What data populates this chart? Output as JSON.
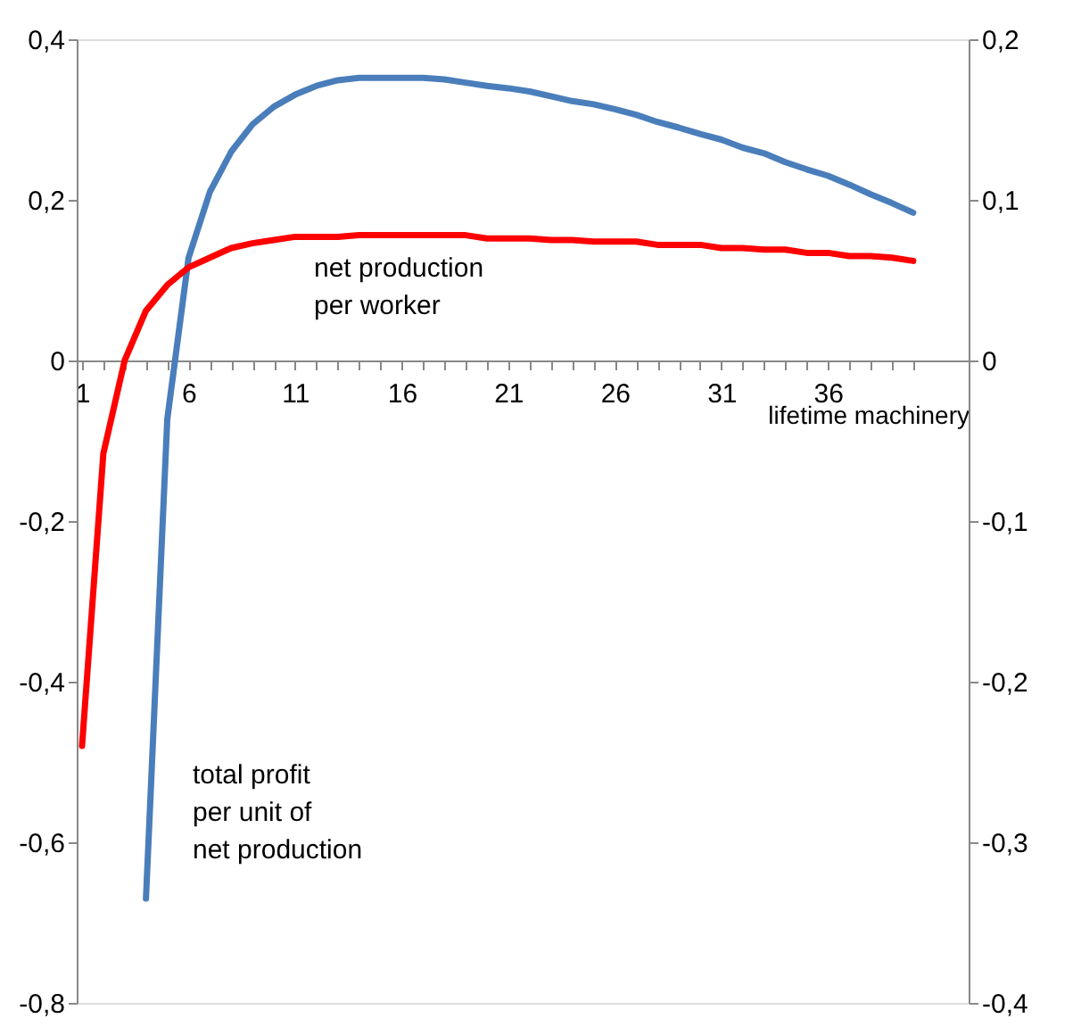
{
  "chart_data": {
    "type": "line",
    "xlabel": "lifetime machinery",
    "x": [
      1,
      2,
      3,
      4,
      5,
      6,
      7,
      8,
      9,
      10,
      11,
      12,
      13,
      14,
      15,
      16,
      17,
      18,
      19,
      20,
      21,
      22,
      23,
      24,
      25,
      26,
      27,
      28,
      29,
      30,
      31,
      32,
      33,
      34,
      35,
      36,
      37,
      38,
      39,
      40
    ],
    "series": [
      {
        "name": "total profit per unit of net production",
        "color": "#4a7ebb",
        "x": [
          4,
          5,
          6,
          7,
          8,
          9,
          10,
          11,
          12,
          13,
          14,
          15,
          16,
          17,
          18,
          19,
          20,
          21,
          22,
          23,
          24,
          25,
          26,
          27,
          28,
          29,
          30,
          31,
          32,
          33,
          34,
          35,
          36,
          37,
          38,
          39,
          40
        ],
        "values": [
          -0.67,
          -0.073,
          0.128,
          0.21,
          0.26,
          0.294,
          0.316,
          0.331,
          0.342,
          0.349,
          0.352,
          0.352,
          0.352,
          0.352,
          0.35,
          0.346,
          0.342,
          0.339,
          0.335,
          0.329,
          0.323,
          0.319,
          0.313,
          0.306,
          0.297,
          0.29,
          0.282,
          0.275,
          0.265,
          0.258,
          0.247,
          0.238,
          0.23,
          0.219,
          0.207,
          0.196,
          0.184
        ]
      },
      {
        "name": "net production per worker",
        "color": "#ff0000",
        "axis": "y2",
        "values": [
          -0.24,
          -0.058,
          0.0,
          0.031,
          0.047,
          0.058,
          0.064,
          0.07,
          0.073,
          0.075,
          0.077,
          0.077,
          0.077,
          0.078,
          0.078,
          0.078,
          0.078,
          0.078,
          0.078,
          0.076,
          0.076,
          0.076,
          0.075,
          0.075,
          0.074,
          0.074,
          0.074,
          0.072,
          0.072,
          0.072,
          0.07,
          0.07,
          0.069,
          0.069,
          0.067,
          0.067,
          0.065,
          0.065,
          0.064,
          0.062
        ]
      }
    ],
    "xlim": [
      0.75,
      42.6
    ],
    "xticks": [
      1,
      {
        "value": 2,
        "label": null
      },
      {
        "value": 3,
        "label": null
      },
      {
        "value": 4,
        "label": null
      },
      {
        "value": 5,
        "label": null
      },
      6,
      {
        "value": 7,
        "label": null
      },
      {
        "value": 8,
        "label": null
      },
      {
        "value": 9,
        "label": null
      },
      {
        "value": 10,
        "label": null
      },
      11,
      {
        "value": 12,
        "label": null
      },
      {
        "value": 13,
        "label": null
      },
      {
        "value": 14,
        "label": null
      },
      {
        "value": 15,
        "label": null
      },
      16,
      {
        "value": 17,
        "label": null
      },
      {
        "value": 18,
        "label": null
      },
      {
        "value": 19,
        "label": null
      },
      {
        "value": 20,
        "label": null
      },
      21,
      {
        "value": 22,
        "label": null
      },
      {
        "value": 23,
        "label": null
      },
      {
        "value": 24,
        "label": null
      },
      {
        "value": 25,
        "label": null
      },
      26,
      {
        "value": 27,
        "label": null
      },
      {
        "value": 28,
        "label": null
      },
      {
        "value": 29,
        "label": null
      },
      {
        "value": 30,
        "label": null
      },
      31,
      {
        "value": 32,
        "label": null
      },
      {
        "value": 33,
        "label": null
      },
      {
        "value": 34,
        "label": null
      },
      {
        "value": 35,
        "label": null
      },
      36,
      {
        "value": 37,
        "label": null
      },
      {
        "value": 38,
        "label": null
      },
      {
        "value": 39,
        "label": null
      },
      {
        "value": 40,
        "label": null
      }
    ],
    "ylim": [
      -0.8,
      0.4
    ],
    "yticks": [
      {
        "value": -0.8,
        "label": "-0,8"
      },
      {
        "value": -0.6,
        "label": "-0,6"
      },
      {
        "value": -0.4,
        "label": "-0,4"
      },
      {
        "value": -0.2,
        "label": "-0,2"
      },
      0,
      {
        "value": 0.2,
        "label": "0,2"
      },
      {
        "value": 0.4,
        "label": "0,4"
      }
    ],
    "y2lim": [
      -0.4,
      0.2
    ],
    "y2ticks": [
      {
        "value": -0.4,
        "label": "-0,4"
      },
      {
        "value": -0.3,
        "label": "-0,3"
      },
      {
        "value": -0.2,
        "label": "-0,2"
      },
      {
        "value": -0.1,
        "label": "-0,1"
      },
      0,
      {
        "value": 0.1,
        "label": "0,1"
      },
      {
        "value": 0.2,
        "label": "0,2"
      }
    ],
    "grid": false,
    "legend": false,
    "marker": "none",
    "line_style": "solid"
  }
}
